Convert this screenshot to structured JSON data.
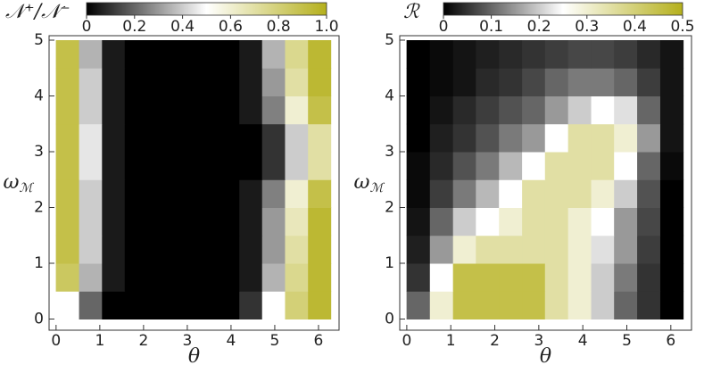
{
  "chart_data": [
    {
      "type": "heatmap",
      "title": "𝒩⁺/𝒩⁻",
      "x_label": "θ",
      "y_label": "ω",
      "y_label_sub": "ℳ",
      "colormap": [
        "#000000",
        "#ffffff",
        "#b5b01c"
      ],
      "zlim": [
        0,
        1
      ],
      "zticks": [
        0,
        0.2,
        0.4,
        0.6,
        0.8,
        {
          "value": 1,
          "label": "1.0"
        }
      ],
      "xlim": [
        -0.16,
        6.47
      ],
      "xticks": [
        0,
        1,
        2,
        3,
        4,
        5,
        6
      ],
      "ylim": [
        -0.2,
        5.08
      ],
      "yticks": [
        0,
        1,
        2,
        3,
        4,
        5
      ],
      "x": [
        0.26,
        0.79,
        1.31,
        1.83,
        2.36,
        2.88,
        3.4,
        3.93,
        4.45,
        4.97,
        5.5,
        6.02
      ],
      "y": [
        0.25,
        0.75,
        1.25,
        1.75,
        2.25,
        2.75,
        3.25,
        3.75,
        4.25,
        4.75
      ],
      "z": [
        [
          0.5,
          0.2,
          0,
          0,
          0,
          0,
          0,
          0,
          0.1,
          0.5,
          0.8,
          0.95
        ],
        [
          0.85,
          0.35,
          0.05,
          0,
          0,
          0,
          0,
          0,
          0.05,
          0.35,
          0.75,
          0.95
        ],
        [
          0.9,
          0.4,
          0.05,
          0,
          0,
          0,
          0,
          0,
          0.05,
          0.3,
          0.7,
          0.95
        ],
        [
          0.9,
          0.4,
          0.05,
          0,
          0,
          0,
          0,
          0,
          0.05,
          0.3,
          0.65,
          0.95
        ],
        [
          0.9,
          0.4,
          0.05,
          0,
          0,
          0,
          0,
          0,
          0.05,
          0.25,
          0.6,
          0.9
        ],
        [
          0.9,
          0.45,
          0.05,
          0,
          0,
          0,
          0,
          0,
          0,
          0.1,
          0.4,
          0.7
        ],
        [
          0.9,
          0.45,
          0.05,
          0,
          0,
          0,
          0,
          0,
          0,
          0.1,
          0.4,
          0.7
        ],
        [
          0.9,
          0.4,
          0.05,
          0,
          0,
          0,
          0,
          0,
          0.05,
          0.25,
          0.6,
          0.9
        ],
        [
          0.9,
          0.4,
          0.05,
          0,
          0,
          0,
          0,
          0,
          0.05,
          0.3,
          0.7,
          0.95
        ],
        [
          0.9,
          0.35,
          0.05,
          0,
          0,
          0,
          0,
          0,
          0.05,
          0.35,
          0.75,
          0.95
        ]
      ]
    },
    {
      "type": "heatmap",
      "title": "ℛ",
      "x_label": "θ",
      "y_label": "ω",
      "y_label_sub": "ℳ",
      "colormap": [
        "#000000",
        "#ffffff",
        "#b5b01c"
      ],
      "zlim": [
        0,
        0.5
      ],
      "zticks": [
        0,
        0.1,
        0.2,
        0.3,
        0.4,
        0.5
      ],
      "xlim": [
        -0.16,
        6.47
      ],
      "xticks": [
        0,
        1,
        2,
        3,
        4,
        5,
        6
      ],
      "ylim": [
        -0.2,
        5.08
      ],
      "yticks": [
        0,
        1,
        2,
        3,
        4,
        5
      ],
      "x": [
        0.26,
        0.79,
        1.31,
        1.83,
        2.36,
        2.88,
        3.4,
        3.93,
        4.45,
        4.97,
        5.5,
        6.02
      ],
      "y": [
        0.25,
        0.75,
        1.25,
        1.75,
        2.25,
        2.75,
        3.25,
        3.75,
        4.25,
        4.75
      ],
      "z": [
        [
          0.1,
          0.3,
          0.45,
          0.45,
          0.45,
          0.45,
          0.35,
          0.3,
          0.2,
          0.1,
          0.05,
          0
        ],
        [
          0.05,
          0.25,
          0.45,
          0.45,
          0.45,
          0.45,
          0.35,
          0.3,
          0.2,
          0.12,
          0.05,
          0
        ],
        [
          0.03,
          0.15,
          0.3,
          0.35,
          0.35,
          0.35,
          0.35,
          0.3,
          0.22,
          0.15,
          0.06,
          0
        ],
        [
          0.02,
          0.1,
          0.2,
          0.25,
          0.3,
          0.35,
          0.35,
          0.3,
          0.25,
          0.15,
          0.07,
          0
        ],
        [
          0.01,
          0.06,
          0.12,
          0.18,
          0.25,
          0.35,
          0.35,
          0.35,
          0.3,
          0.2,
          0.08,
          0
        ],
        [
          0.01,
          0.04,
          0.08,
          0.12,
          0.18,
          0.25,
          0.35,
          0.35,
          0.35,
          0.25,
          0.1,
          0.01
        ],
        [
          0,
          0.03,
          0.05,
          0.08,
          0.12,
          0.15,
          0.25,
          0.35,
          0.35,
          0.3,
          0.15,
          0.02
        ],
        [
          0,
          0.02,
          0.04,
          0.06,
          0.08,
          0.1,
          0.15,
          0.2,
          0.25,
          0.22,
          0.1,
          0.02
        ],
        [
          0,
          0.01,
          0.02,
          0.04,
          0.05,
          0.07,
          0.1,
          0.12,
          0.12,
          0.1,
          0.06,
          0.02
        ],
        [
          0,
          0.01,
          0.02,
          0.03,
          0.04,
          0.05,
          0.06,
          0.07,
          0.07,
          0.06,
          0.04,
          0.02
        ]
      ]
    }
  ]
}
